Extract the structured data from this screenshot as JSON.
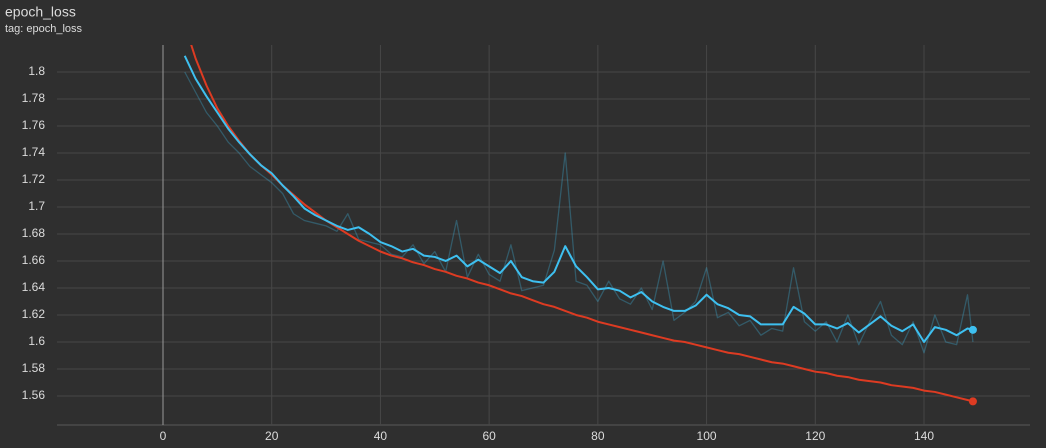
{
  "chart_data": {
    "type": "line",
    "title": "epoch_loss",
    "subtitle": "tag: epoch_loss",
    "x": [
      4,
      6,
      8,
      10,
      12,
      14,
      16,
      18,
      20,
      22,
      24,
      26,
      28,
      30,
      32,
      34,
      36,
      38,
      40,
      42,
      44,
      46,
      48,
      50,
      52,
      54,
      56,
      58,
      60,
      62,
      64,
      66,
      68,
      70,
      72,
      74,
      76,
      78,
      80,
      82,
      84,
      86,
      88,
      90,
      92,
      94,
      96,
      98,
      100,
      102,
      104,
      106,
      108,
      110,
      112,
      114,
      116,
      118,
      120,
      122,
      124,
      126,
      128,
      130,
      132,
      134,
      136,
      138,
      140,
      142,
      144,
      146,
      148,
      149
    ],
    "series": [
      {
        "color": "#3ec0f0",
        "opacity": 0.3,
        "values": [
          1.8,
          1.785,
          1.77,
          1.76,
          1.748,
          1.74,
          1.73,
          1.724,
          1.718,
          1.71,
          1.695,
          1.69,
          1.688,
          1.686,
          1.682,
          1.695,
          1.676,
          1.674,
          1.672,
          1.665,
          1.663,
          1.672,
          1.658,
          1.667,
          1.652,
          1.69,
          1.648,
          1.665,
          1.65,
          1.645,
          1.672,
          1.638,
          1.64,
          1.642,
          1.668,
          1.74,
          1.645,
          1.642,
          1.63,
          1.645,
          1.632,
          1.628,
          1.64,
          1.624,
          1.66,
          1.616,
          1.622,
          1.63,
          1.655,
          1.618,
          1.622,
          1.612,
          1.616,
          1.605,
          1.61,
          1.608,
          1.655,
          1.615,
          1.608,
          1.615,
          1.6,
          1.62,
          1.598,
          1.615,
          1.63,
          1.605,
          1.598,
          1.615,
          1.592,
          1.62,
          1.6,
          1.598,
          1.635,
          1.6
        ]
      },
      {
        "color": "#dd3b22",
        "opacity": 1,
        "end_dot": true,
        "values": [
          1.835,
          1.81,
          1.79,
          1.773,
          1.76,
          1.749,
          1.739,
          1.731,
          1.724,
          1.716,
          1.709,
          1.702,
          1.696,
          1.69,
          1.685,
          1.68,
          1.675,
          1.671,
          1.667,
          1.664,
          1.662,
          1.659,
          1.657,
          1.654,
          1.652,
          1.649,
          1.647,
          1.644,
          1.642,
          1.639,
          1.636,
          1.634,
          1.631,
          1.628,
          1.626,
          1.623,
          1.62,
          1.618,
          1.615,
          1.613,
          1.611,
          1.609,
          1.607,
          1.605,
          1.603,
          1.601,
          1.6,
          1.598,
          1.596,
          1.594,
          1.592,
          1.591,
          1.589,
          1.587,
          1.585,
          1.584,
          1.582,
          1.58,
          1.578,
          1.577,
          1.575,
          1.574,
          1.572,
          1.571,
          1.57,
          1.568,
          1.567,
          1.566,
          1.564,
          1.563,
          1.561,
          1.559,
          1.557,
          1.556
        ]
      },
      {
        "color": "#3ec0f0",
        "opacity": 1,
        "end_dot": true,
        "values": [
          1.812,
          1.795,
          1.782,
          1.77,
          1.758,
          1.748,
          1.739,
          1.731,
          1.725,
          1.716,
          1.708,
          1.699,
          1.694,
          1.69,
          1.686,
          1.683,
          1.685,
          1.68,
          1.674,
          1.671,
          1.667,
          1.669,
          1.664,
          1.663,
          1.66,
          1.664,
          1.656,
          1.661,
          1.656,
          1.651,
          1.66,
          1.648,
          1.645,
          1.644,
          1.652,
          1.671,
          1.656,
          1.648,
          1.639,
          1.64,
          1.638,
          1.633,
          1.637,
          1.63,
          1.626,
          1.623,
          1.623,
          1.627,
          1.635,
          1.628,
          1.625,
          1.62,
          1.619,
          1.613,
          1.613,
          1.613,
          1.626,
          1.621,
          1.613,
          1.613,
          1.61,
          1.614,
          1.607,
          1.613,
          1.619,
          1.612,
          1.608,
          1.613,
          1.6,
          1.611,
          1.609,
          1.605,
          1.61,
          1.609
        ]
      }
    ],
    "xlim": [
      -19.5,
      159.5
    ],
    "ylim": [
      1.5385,
      1.82
    ],
    "xticks": [
      0,
      20,
      40,
      60,
      80,
      100,
      120,
      140
    ],
    "yticks": [
      1.56,
      1.58,
      1.6,
      1.62,
      1.64,
      1.66,
      1.68,
      1.7,
      1.72,
      1.74,
      1.76,
      1.78,
      1.8
    ],
    "grid": true
  }
}
